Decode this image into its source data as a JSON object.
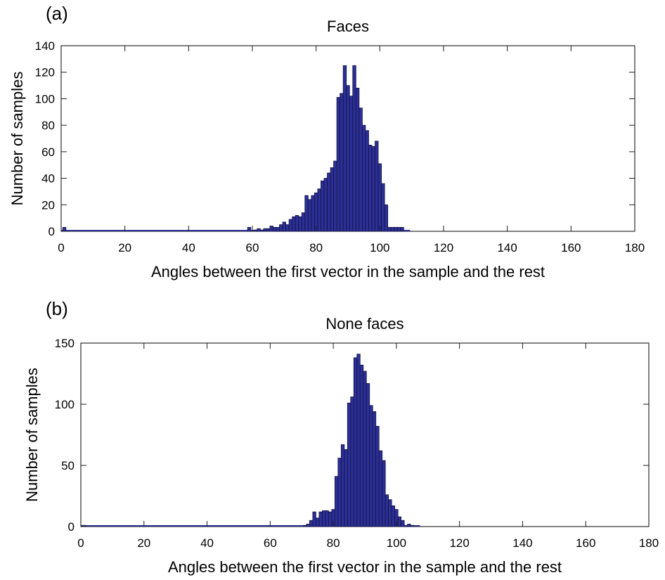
{
  "chart_data": [
    {
      "type": "bar",
      "panel_label": "(a)",
      "title": "Faces",
      "xlabel": "Angles between the first vector in the sample and the rest",
      "ylabel": "Number of samples",
      "xlim": [
        0,
        180
      ],
      "ylim": [
        0,
        140
      ],
      "xticks": [
        0,
        20,
        40,
        60,
        80,
        100,
        120,
        140,
        160,
        180
      ],
      "yticks": [
        0,
        20,
        40,
        60,
        80,
        100,
        120,
        140
      ],
      "bin_width": 1,
      "bar_color": "#2c2f95",
      "bars": {
        "x": [
          1,
          59,
          61,
          62,
          63,
          64,
          65,
          66,
          67,
          68,
          69,
          70,
          71,
          72,
          73,
          74,
          75,
          76,
          77,
          78,
          79,
          80,
          81,
          82,
          83,
          84,
          85,
          86,
          87,
          88,
          89,
          90,
          91,
          92,
          93,
          94,
          95,
          96,
          97,
          98,
          99,
          100,
          101,
          102,
          103,
          104,
          105,
          106,
          107,
          108
        ],
        "values": [
          3,
          3,
          1,
          2,
          1,
          2,
          2,
          4,
          3,
          3,
          5,
          7,
          5,
          9,
          11,
          12,
          11,
          14,
          27,
          24,
          27,
          29,
          32,
          38,
          40,
          44,
          48,
          53,
          101,
          104,
          125,
          110,
          102,
          125,
          108,
          93,
          80,
          76,
          65,
          64,
          68,
          51,
          36,
          20,
          3,
          3,
          3,
          3,
          3,
          0
        ]
      }
    },
    {
      "type": "bar",
      "panel_label": "(b)",
      "title": "None faces",
      "xlabel": "Angles between the first vector in the sample and the rest",
      "ylabel": "Number of samples",
      "xlim": [
        0,
        180
      ],
      "ylim": [
        0,
        150
      ],
      "xticks": [
        0,
        20,
        40,
        60,
        80,
        100,
        120,
        140,
        160,
        180
      ],
      "yticks": [
        0,
        50,
        100,
        150
      ],
      "bin_width": 1,
      "bar_color": "#2c2f95",
      "bars": {
        "x": [
          1,
          71,
          72,
          73,
          74,
          75,
          76,
          77,
          78,
          79,
          80,
          81,
          82,
          83,
          84,
          85,
          86,
          87,
          88,
          89,
          90,
          91,
          92,
          93,
          94,
          95,
          96,
          97,
          98,
          99,
          100,
          101,
          102,
          103,
          104,
          105,
          106
        ],
        "values": [
          1,
          1,
          2,
          5,
          12,
          7,
          12,
          13,
          13,
          12,
          14,
          41,
          56,
          67,
          63,
          101,
          106,
          138,
          141,
          132,
          127,
          117,
          99,
          94,
          82,
          62,
          54,
          26,
          22,
          17,
          14,
          8,
          5,
          1,
          2,
          1,
          0
        ]
      }
    }
  ]
}
